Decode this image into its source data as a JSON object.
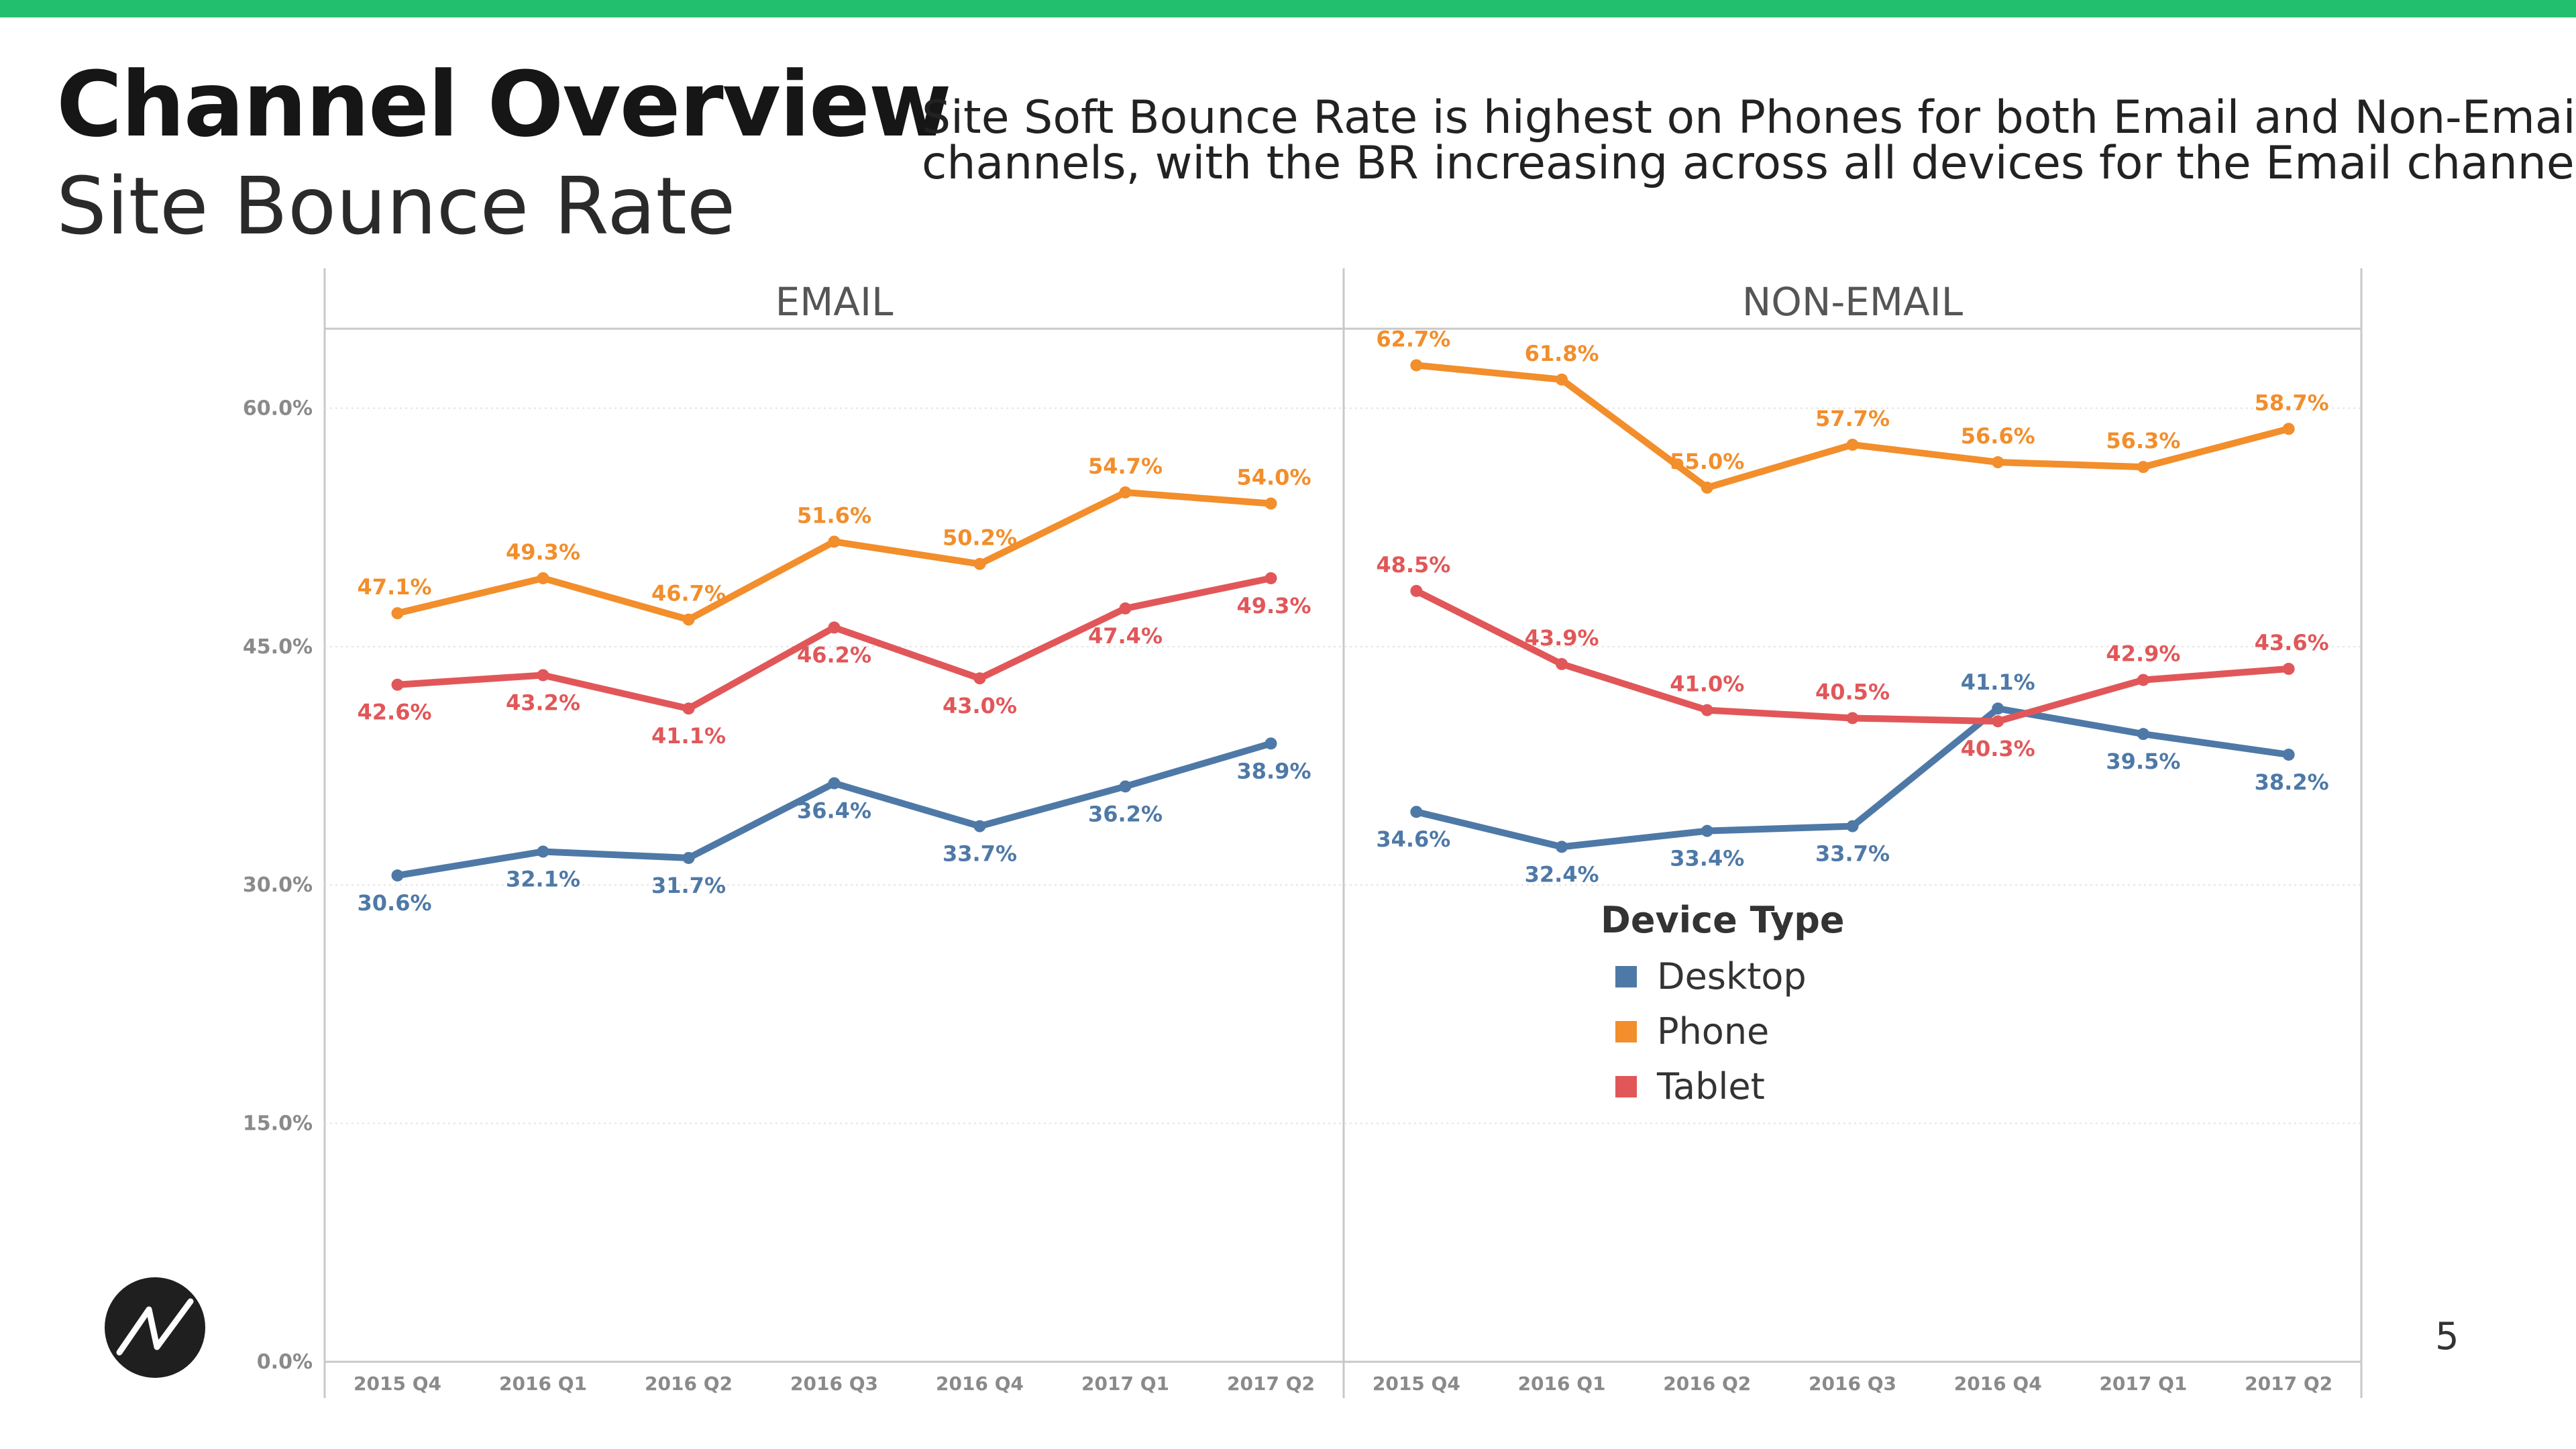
{
  "header": {
    "title": "Channel Overview",
    "subtitle": "Site Bounce Rate",
    "insight_line1": "Site Soft Bounce Rate is highest on Phones for both Email and Non-Email",
    "insight_line2": "channels, with the BR increasing across all devices for the Email channel."
  },
  "page_number": "5",
  "logo_icon": "brand-logo-icon",
  "colors": {
    "accent_bar": "#22c06e",
    "Desktop": "#4e79a7",
    "Phone": "#f28e2b",
    "Tablet": "#e15759"
  },
  "chart_data": {
    "type": "line",
    "categories": [
      "2015 Q4",
      "2016 Q1",
      "2016 Q2",
      "2016 Q3",
      "2016 Q4",
      "2017 Q1",
      "2017 Q2"
    ],
    "y_ticks": [
      "0.0%",
      "15.0%",
      "30.0%",
      "45.0%",
      "60.0%"
    ],
    "ylim": [
      0,
      65
    ],
    "grid": true,
    "legend": {
      "title": "Device Type",
      "placement": "inside-right-panel",
      "entries": [
        "Desktop",
        "Phone",
        "Tablet"
      ]
    },
    "panels": [
      {
        "name": "EMAIL",
        "series": [
          {
            "name": "Desktop",
            "values": [
              30.6,
              32.1,
              31.7,
              36.4,
              33.7,
              36.2,
              38.9
            ],
            "labels": [
              "30.6%",
              "32.1%",
              "31.7%",
              "36.4%",
              "33.7%",
              "36.2%",
              "38.9%"
            ]
          },
          {
            "name": "Phone",
            "values": [
              47.1,
              49.3,
              46.7,
              51.6,
              50.2,
              54.7,
              54.0
            ],
            "labels": [
              "47.1%",
              "49.3%",
              "46.7%",
              "51.6%",
              "50.2%",
              "54.7%",
              "54.0%"
            ]
          },
          {
            "name": "Tablet",
            "values": [
              42.6,
              43.2,
              41.1,
              46.2,
              43.0,
              47.4,
              49.3
            ],
            "labels": [
              "42.6%",
              "43.2%",
              "41.1%",
              "46.2%",
              "43.0%",
              "47.4%",
              "49.3%"
            ]
          }
        ]
      },
      {
        "name": "NON-EMAIL",
        "series": [
          {
            "name": "Desktop",
            "values": [
              34.6,
              32.4,
              33.4,
              33.7,
              41.1,
              39.5,
              38.2
            ],
            "labels": [
              "34.6%",
              "32.4%",
              "33.4%",
              "33.7%",
              "41.1%",
              "39.5%",
              "38.2%"
            ]
          },
          {
            "name": "Phone",
            "values": [
              62.7,
              61.8,
              55.0,
              57.7,
              56.6,
              56.3,
              58.7
            ],
            "labels": [
              "62.7%",
              "61.8%",
              "55.0%",
              "57.7%",
              "56.6%",
              "56.3%",
              "58.7%"
            ]
          },
          {
            "name": "Tablet",
            "values": [
              48.5,
              43.9,
              41.0,
              40.5,
              40.3,
              42.9,
              43.6
            ],
            "labels": [
              "48.5%",
              "43.9%",
              "41.0%",
              "40.5%",
              "40.3%",
              "42.9%",
              "43.6%"
            ]
          }
        ]
      }
    ]
  }
}
